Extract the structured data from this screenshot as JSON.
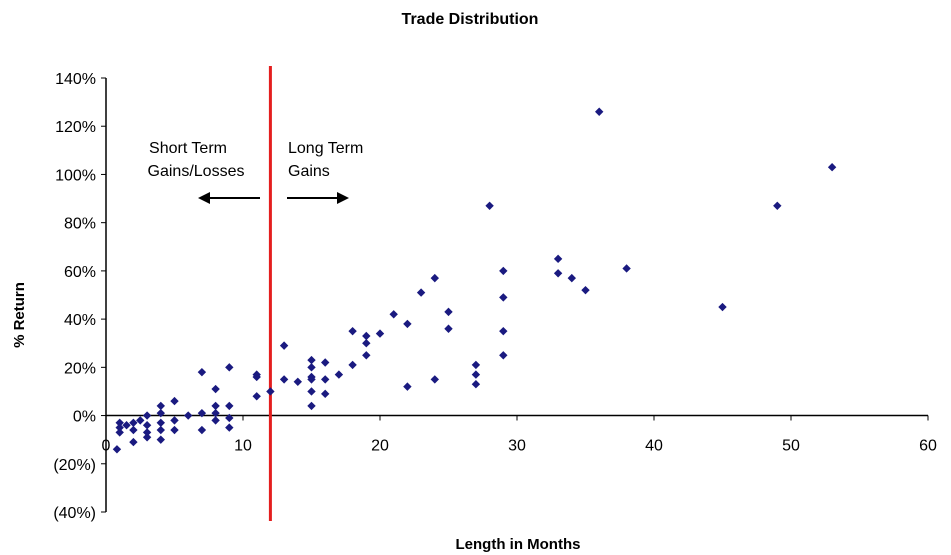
{
  "chart_data": {
    "type": "scatter",
    "title": "Trade Distribution",
    "xlabel": "Length in Months",
    "ylabel": "% Return",
    "xlim": [
      0,
      60
    ],
    "ylim": [
      -40,
      140
    ],
    "x_ticks": [
      {
        "value": 0,
        "label": "0"
      },
      {
        "value": 10,
        "label": "10"
      },
      {
        "value": 20,
        "label": "20"
      },
      {
        "value": 30,
        "label": "30"
      },
      {
        "value": 40,
        "label": "40"
      },
      {
        "value": 50,
        "label": "50"
      },
      {
        "value": 60,
        "label": "60"
      }
    ],
    "y_ticks": [
      {
        "value": 140,
        "label": "140%"
      },
      {
        "value": 120,
        "label": "120%"
      },
      {
        "value": 100,
        "label": "100%"
      },
      {
        "value": 80,
        "label": "80%"
      },
      {
        "value": 60,
        "label": "60%"
      },
      {
        "value": 40,
        "label": "40%"
      },
      {
        "value": 20,
        "label": "20%"
      },
      {
        "value": 0,
        "label": "0%"
      },
      {
        "value": -20,
        "label": "(20%)"
      },
      {
        "value": -40,
        "label": "(40%)"
      }
    ],
    "grid": false,
    "legend": "none",
    "colors": {
      "points": "#1a1a80",
      "divider": "#e41e1e",
      "negative_label": "#e41e1e",
      "axis": "#000000"
    },
    "divider": {
      "x": 12
    },
    "annotations": {
      "left": {
        "lines": [
          "Short Term",
          "Gains/Losses"
        ],
        "arrow": "left"
      },
      "right": {
        "lines": [
          "Long Term",
          "Gains"
        ],
        "arrow": "right"
      }
    },
    "points": [
      {
        "x": 0.8,
        "y": -14
      },
      {
        "x": 1,
        "y": -3
      },
      {
        "x": 1,
        "y": -5
      },
      {
        "x": 1,
        "y": -7
      },
      {
        "x": 1.5,
        "y": -4
      },
      {
        "x": 2,
        "y": -3
      },
      {
        "x": 2,
        "y": -6
      },
      {
        "x": 2,
        "y": -11
      },
      {
        "x": 2.5,
        "y": -2
      },
      {
        "x": 3,
        "y": -4
      },
      {
        "x": 3,
        "y": -7
      },
      {
        "x": 3,
        "y": -9
      },
      {
        "x": 3,
        "y": 0
      },
      {
        "x": 4,
        "y": 4
      },
      {
        "x": 4,
        "y": 1
      },
      {
        "x": 4,
        "y": -3
      },
      {
        "x": 4,
        "y": -6
      },
      {
        "x": 4,
        "y": -10
      },
      {
        "x": 5,
        "y": 6
      },
      {
        "x": 5,
        "y": -2
      },
      {
        "x": 5,
        "y": -6
      },
      {
        "x": 6,
        "y": 0
      },
      {
        "x": 7,
        "y": 18
      },
      {
        "x": 7,
        "y": 1
      },
      {
        "x": 7,
        "y": -6
      },
      {
        "x": 8,
        "y": 11
      },
      {
        "x": 8,
        "y": 4
      },
      {
        "x": 8,
        "y": 1
      },
      {
        "x": 8,
        "y": -2
      },
      {
        "x": 9,
        "y": 20
      },
      {
        "x": 9,
        "y": 4
      },
      {
        "x": 9,
        "y": -1
      },
      {
        "x": 9,
        "y": -5
      },
      {
        "x": 11,
        "y": 17
      },
      {
        "x": 11,
        "y": 16
      },
      {
        "x": 11,
        "y": 8
      },
      {
        "x": 12,
        "y": 10
      },
      {
        "x": 13,
        "y": 29
      },
      {
        "x": 13,
        "y": 15
      },
      {
        "x": 14,
        "y": 14
      },
      {
        "x": 15,
        "y": 23
      },
      {
        "x": 15,
        "y": 20
      },
      {
        "x": 15,
        "y": 16
      },
      {
        "x": 15,
        "y": 15
      },
      {
        "x": 15,
        "y": 10
      },
      {
        "x": 15,
        "y": 4
      },
      {
        "x": 16,
        "y": 22
      },
      {
        "x": 16,
        "y": 15
      },
      {
        "x": 16,
        "y": 9
      },
      {
        "x": 17,
        "y": 17
      },
      {
        "x": 18,
        "y": 35
      },
      {
        "x": 18,
        "y": 21
      },
      {
        "x": 19,
        "y": 33
      },
      {
        "x": 19,
        "y": 30
      },
      {
        "x": 19,
        "y": 25
      },
      {
        "x": 20,
        "y": 34
      },
      {
        "x": 21,
        "y": 42
      },
      {
        "x": 22,
        "y": 38
      },
      {
        "x": 22,
        "y": 12
      },
      {
        "x": 23,
        "y": 51
      },
      {
        "x": 24,
        "y": 57
      },
      {
        "x": 24,
        "y": 15
      },
      {
        "x": 25,
        "y": 43
      },
      {
        "x": 25,
        "y": 36
      },
      {
        "x": 27,
        "y": 21
      },
      {
        "x": 27,
        "y": 17
      },
      {
        "x": 27,
        "y": 13
      },
      {
        "x": 28,
        "y": 87
      },
      {
        "x": 29,
        "y": 60
      },
      {
        "x": 29,
        "y": 49
      },
      {
        "x": 29,
        "y": 35
      },
      {
        "x": 29,
        "y": 25
      },
      {
        "x": 33,
        "y": 65
      },
      {
        "x": 33,
        "y": 59
      },
      {
        "x": 34,
        "y": 57
      },
      {
        "x": 35,
        "y": 52
      },
      {
        "x": 36,
        "y": 126
      },
      {
        "x": 38,
        "y": 61
      },
      {
        "x": 45,
        "y": 45
      },
      {
        "x": 49,
        "y": 87
      },
      {
        "x": 53,
        "y": 103
      }
    ]
  }
}
